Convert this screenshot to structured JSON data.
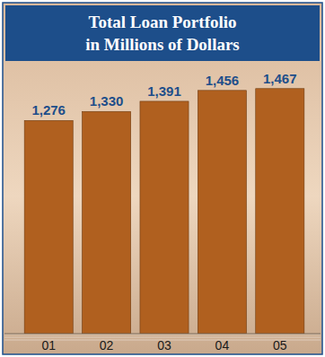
{
  "chart_data": {
    "type": "bar",
    "title": "Total Loan Portfolio",
    "subtitle": "in Millions of Dollars",
    "categories": [
      "01",
      "02",
      "03",
      "04",
      "05"
    ],
    "values": [
      1276,
      1330,
      1391,
      1456,
      1467
    ],
    "value_labels": [
      "1,276",
      "1,330",
      "1,391",
      "1,456",
      "1,467"
    ],
    "color": "#b0601f",
    "ylim": [
      0,
      1600
    ],
    "grid": false,
    "data_labels": true,
    "tick_labels": "x"
  }
}
